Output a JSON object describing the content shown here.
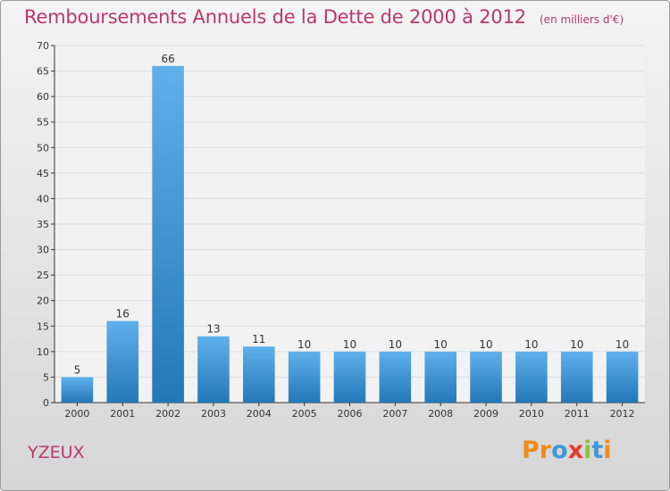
{
  "chart": {
    "title": "Remboursements Annuels de la Dette de 2000 à 2012",
    "subtitle": "(en milliers d'€)",
    "commune": "YZEUX",
    "logo_text": "Proxiti"
  },
  "colors": {
    "title": "#b8386a",
    "bar_top": "#5fb0ec",
    "bar_bottom": "#2478b8",
    "logo_letters": [
      "#f08a1c",
      "#f08a1c",
      "#3e9ad6",
      "#e83a2a",
      "#8cc540",
      "#3e9ad6",
      "#f08a1c"
    ]
  },
  "chart_data": {
    "type": "bar",
    "title": "Remboursements Annuels de la Dette de 2000 à 2012",
    "categories": [
      "2000",
      "2001",
      "2002",
      "2003",
      "2004",
      "2005",
      "2006",
      "2007",
      "2008",
      "2009",
      "2010",
      "2011",
      "2012"
    ],
    "values": [
      5,
      16,
      66,
      13,
      11,
      10,
      10,
      10,
      10,
      10,
      10,
      10,
      10
    ],
    "ylim": [
      0,
      70
    ],
    "yticks": [
      0,
      5,
      10,
      15,
      20,
      25,
      30,
      35,
      40,
      45,
      50,
      55,
      60,
      65,
      70
    ],
    "xlabel": "",
    "ylabel": "",
    "grid": true
  }
}
